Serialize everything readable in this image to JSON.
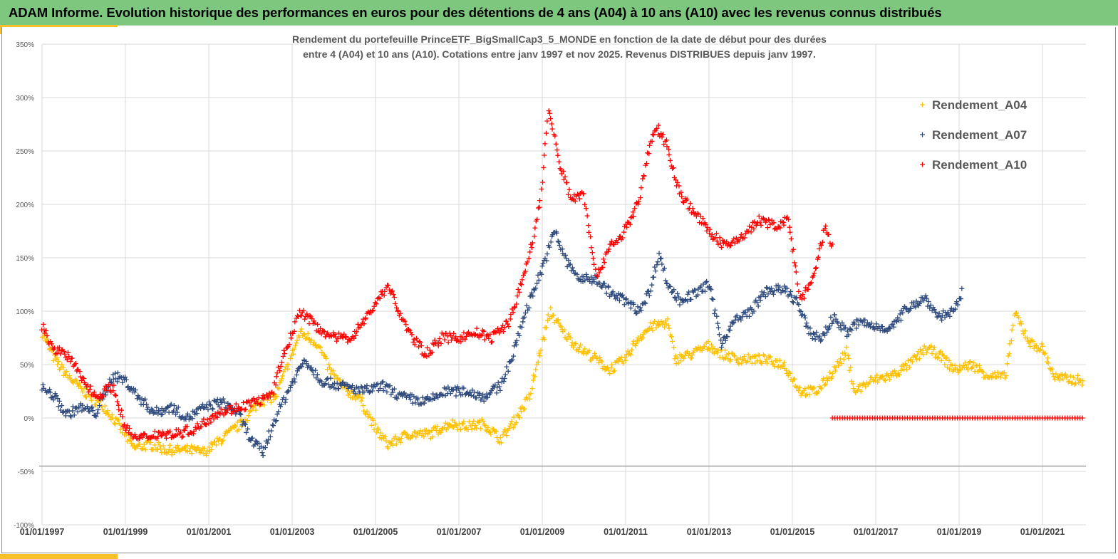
{
  "header": {
    "title": "ADAM Informe. Evolution historique des performances en euros pour des détentions de 4 ans (A04) à 10 ans (A10) avec les revenus connus distribués"
  },
  "chart_data": {
    "type": "scatter",
    "title": [
      "Rendement du portefeuille PrinceETF_BigSmallCap3_5_MONDE  en fonction de la date de début pour des durées",
      "entre 4 (A04) et 10 ans (A10). Cotations  entre janv 1997 et nov 2025. Revenus DISTRIBUES depuis janv 1997."
    ],
    "xlabel": "",
    "ylabel": "",
    "x_unit": "year",
    "xlim": [
      1997,
      2022.1
    ],
    "ylim": [
      -100,
      350
    ],
    "y_ticks": [
      "350%",
      "300%",
      "250%",
      "200%",
      "150%",
      "100%",
      "50%",
      "0%",
      "-50%",
      "-100%"
    ],
    "y_tick_values": [
      350,
      300,
      250,
      200,
      150,
      100,
      50,
      0,
      -50,
      -100
    ],
    "x_ticks": [
      "01/01/1997",
      "01/01/1999",
      "01/01/2001",
      "01/01/2003",
      "01/01/2005",
      "01/01/2007",
      "01/01/2009",
      "01/01/2011",
      "01/01/2013",
      "01/01/2015",
      "01/01/2017",
      "01/01/2019",
      "01/01/2021"
    ],
    "x_tick_values": [
      1997,
      1999,
      2001,
      2003,
      2005,
      2007,
      2009,
      2011,
      2013,
      2015,
      2017,
      2019,
      2021
    ],
    "grid": true,
    "reference_line_y": -45,
    "legend_position": "top-right",
    "series": [
      {
        "name": "Rendement_A04",
        "color": "#FFC000",
        "marker": "plus",
        "points": [
          [
            1997.0,
            80
          ],
          [
            1997.3,
            55
          ],
          [
            1997.6,
            40
          ],
          [
            1998.0,
            25
          ],
          [
            1998.5,
            10
          ],
          [
            1998.9,
            -10
          ],
          [
            1999.2,
            -28
          ],
          [
            1999.6,
            -25
          ],
          [
            2000.0,
            -30
          ],
          [
            2000.5,
            -30
          ],
          [
            2000.9,
            -32
          ],
          [
            2001.3,
            -20
          ],
          [
            2001.8,
            -5
          ],
          [
            2002.2,
            15
          ],
          [
            2002.6,
            20
          ],
          [
            2002.9,
            50
          ],
          [
            2003.2,
            80
          ],
          [
            2003.6,
            70
          ],
          [
            2003.9,
            45
          ],
          [
            2004.3,
            25
          ],
          [
            2004.6,
            20
          ],
          [
            2005.0,
            -10
          ],
          [
            2005.3,
            -25
          ],
          [
            2005.8,
            -15
          ],
          [
            2006.3,
            -15
          ],
          [
            2006.8,
            -5
          ],
          [
            2007.2,
            -8
          ],
          [
            2007.6,
            -5
          ],
          [
            2008.0,
            -20
          ],
          [
            2008.3,
            -5
          ],
          [
            2008.7,
            20
          ],
          [
            2009.0,
            70
          ],
          [
            2009.2,
            100
          ],
          [
            2009.5,
            80
          ],
          [
            2009.9,
            65
          ],
          [
            2010.3,
            55
          ],
          [
            2010.6,
            45
          ],
          [
            2011.0,
            55
          ],
          [
            2011.3,
            75
          ],
          [
            2011.6,
            85
          ],
          [
            2012.0,
            90
          ],
          [
            2012.2,
            55
          ],
          [
            2012.6,
            60
          ],
          [
            2013.0,
            68
          ],
          [
            2013.3,
            60
          ],
          [
            2013.7,
            55
          ],
          [
            2014.3,
            55
          ],
          [
            2014.8,
            50
          ],
          [
            2015.2,
            25
          ],
          [
            2015.6,
            25
          ],
          [
            2016.0,
            45
          ],
          [
            2016.3,
            62
          ],
          [
            2016.5,
            25
          ],
          [
            2016.9,
            35
          ],
          [
            2017.4,
            40
          ],
          [
            2017.8,
            50
          ],
          [
            2018.2,
            65
          ],
          [
            2018.5,
            60
          ],
          [
            2018.9,
            45
          ],
          [
            2019.3,
            50
          ],
          [
            2019.7,
            40
          ],
          [
            2020.1,
            38
          ],
          [
            2020.35,
            98
          ],
          [
            2020.7,
            70
          ],
          [
            2021.0,
            65
          ],
          [
            2021.3,
            38
          ],
          [
            2021.7,
            36
          ],
          [
            2022.0,
            35
          ]
        ]
      },
      {
        "name": "Rendement_A07",
        "color": "#2E4A7D",
        "marker": "plus",
        "points": [
          [
            1997.0,
            28
          ],
          [
            1997.3,
            20
          ],
          [
            1997.6,
            3
          ],
          [
            1997.9,
            10
          ],
          [
            1998.3,
            5
          ],
          [
            1998.7,
            40
          ],
          [
            1999.0,
            35
          ],
          [
            1999.3,
            20
          ],
          [
            1999.7,
            5
          ],
          [
            2000.1,
            10
          ],
          [
            2000.5,
            0
          ],
          [
            2000.9,
            10
          ],
          [
            2001.3,
            15
          ],
          [
            2001.7,
            5
          ],
          [
            2002.0,
            -20
          ],
          [
            2002.3,
            -32
          ],
          [
            2002.6,
            0
          ],
          [
            2002.9,
            25
          ],
          [
            2003.3,
            55
          ],
          [
            2003.7,
            35
          ],
          [
            2004.2,
            30
          ],
          [
            2004.7,
            25
          ],
          [
            2005.2,
            30
          ],
          [
            2005.6,
            20
          ],
          [
            2006.2,
            15
          ],
          [
            2006.7,
            25
          ],
          [
            2007.2,
            25
          ],
          [
            2007.6,
            20
          ],
          [
            2008.0,
            30
          ],
          [
            2008.3,
            60
          ],
          [
            2008.6,
            100
          ],
          [
            2008.8,
            120
          ],
          [
            2009.0,
            140
          ],
          [
            2009.3,
            175
          ],
          [
            2009.6,
            145
          ],
          [
            2009.9,
            130
          ],
          [
            2010.3,
            130
          ],
          [
            2010.7,
            115
          ],
          [
            2011.0,
            110
          ],
          [
            2011.3,
            100
          ],
          [
            2011.6,
            120
          ],
          [
            2011.8,
            155
          ],
          [
            2012.0,
            125
          ],
          [
            2012.3,
            110
          ],
          [
            2012.6,
            115
          ],
          [
            2013.0,
            125
          ],
          [
            2013.3,
            70
          ],
          [
            2013.6,
            90
          ],
          [
            2014.0,
            100
          ],
          [
            2014.4,
            120
          ],
          [
            2014.8,
            120
          ],
          [
            2015.1,
            110
          ],
          [
            2015.4,
            80
          ],
          [
            2015.7,
            75
          ],
          [
            2016.0,
            95
          ],
          [
            2016.3,
            80
          ],
          [
            2016.6,
            90
          ],
          [
            2017.0,
            85
          ],
          [
            2017.4,
            85
          ],
          [
            2017.8,
            105
          ],
          [
            2018.2,
            112
          ],
          [
            2018.5,
            95
          ],
          [
            2018.9,
            100
          ],
          [
            2019.1,
            120
          ]
        ]
      },
      {
        "name": "Rendement_A10",
        "color": "#FF0000",
        "marker": "plus",
        "points": [
          [
            1997.0,
            85
          ],
          [
            1997.3,
            65
          ],
          [
            1997.7,
            55
          ],
          [
            1997.9,
            40
          ],
          [
            1998.3,
            20
          ],
          [
            1998.7,
            30
          ],
          [
            1999.0,
            -10
          ],
          [
            1999.3,
            -20
          ],
          [
            1999.7,
            -15
          ],
          [
            2000.2,
            -15
          ],
          [
            2000.7,
            -10
          ],
          [
            2001.2,
            5
          ],
          [
            2001.7,
            10
          ],
          [
            2002.1,
            15
          ],
          [
            2002.5,
            20
          ],
          [
            2002.8,
            60
          ],
          [
            2003.2,
            100
          ],
          [
            2003.6,
            85
          ],
          [
            2004.0,
            75
          ],
          [
            2004.4,
            75
          ],
          [
            2004.8,
            95
          ],
          [
            2005.3,
            125
          ],
          [
            2005.5,
            105
          ],
          [
            2005.8,
            80
          ],
          [
            2006.2,
            60
          ],
          [
            2006.6,
            75
          ],
          [
            2007.0,
            75
          ],
          [
            2007.4,
            80
          ],
          [
            2007.8,
            75
          ],
          [
            2008.2,
            90
          ],
          [
            2008.5,
            125
          ],
          [
            2008.8,
            170
          ],
          [
            2009.0,
            220
          ],
          [
            2009.15,
            290
          ],
          [
            2009.4,
            240
          ],
          [
            2009.7,
            205
          ],
          [
            2010.0,
            210
          ],
          [
            2010.3,
            130
          ],
          [
            2010.6,
            160
          ],
          [
            2010.9,
            170
          ],
          [
            2011.3,
            200
          ],
          [
            2011.6,
            260
          ],
          [
            2011.8,
            270
          ],
          [
            2012.0,
            255
          ],
          [
            2012.3,
            210
          ],
          [
            2012.7,
            190
          ],
          [
            2013.0,
            175
          ],
          [
            2013.4,
            160
          ],
          [
            2013.8,
            170
          ],
          [
            2014.2,
            185
          ],
          [
            2014.6,
            180
          ],
          [
            2014.9,
            185
          ],
          [
            2015.2,
            110
          ],
          [
            2015.5,
            130
          ],
          [
            2015.8,
            180
          ],
          [
            2015.95,
            160
          ],
          [
            2015.96,
            0
          ],
          [
            2022.0,
            0
          ]
        ]
      }
    ]
  }
}
